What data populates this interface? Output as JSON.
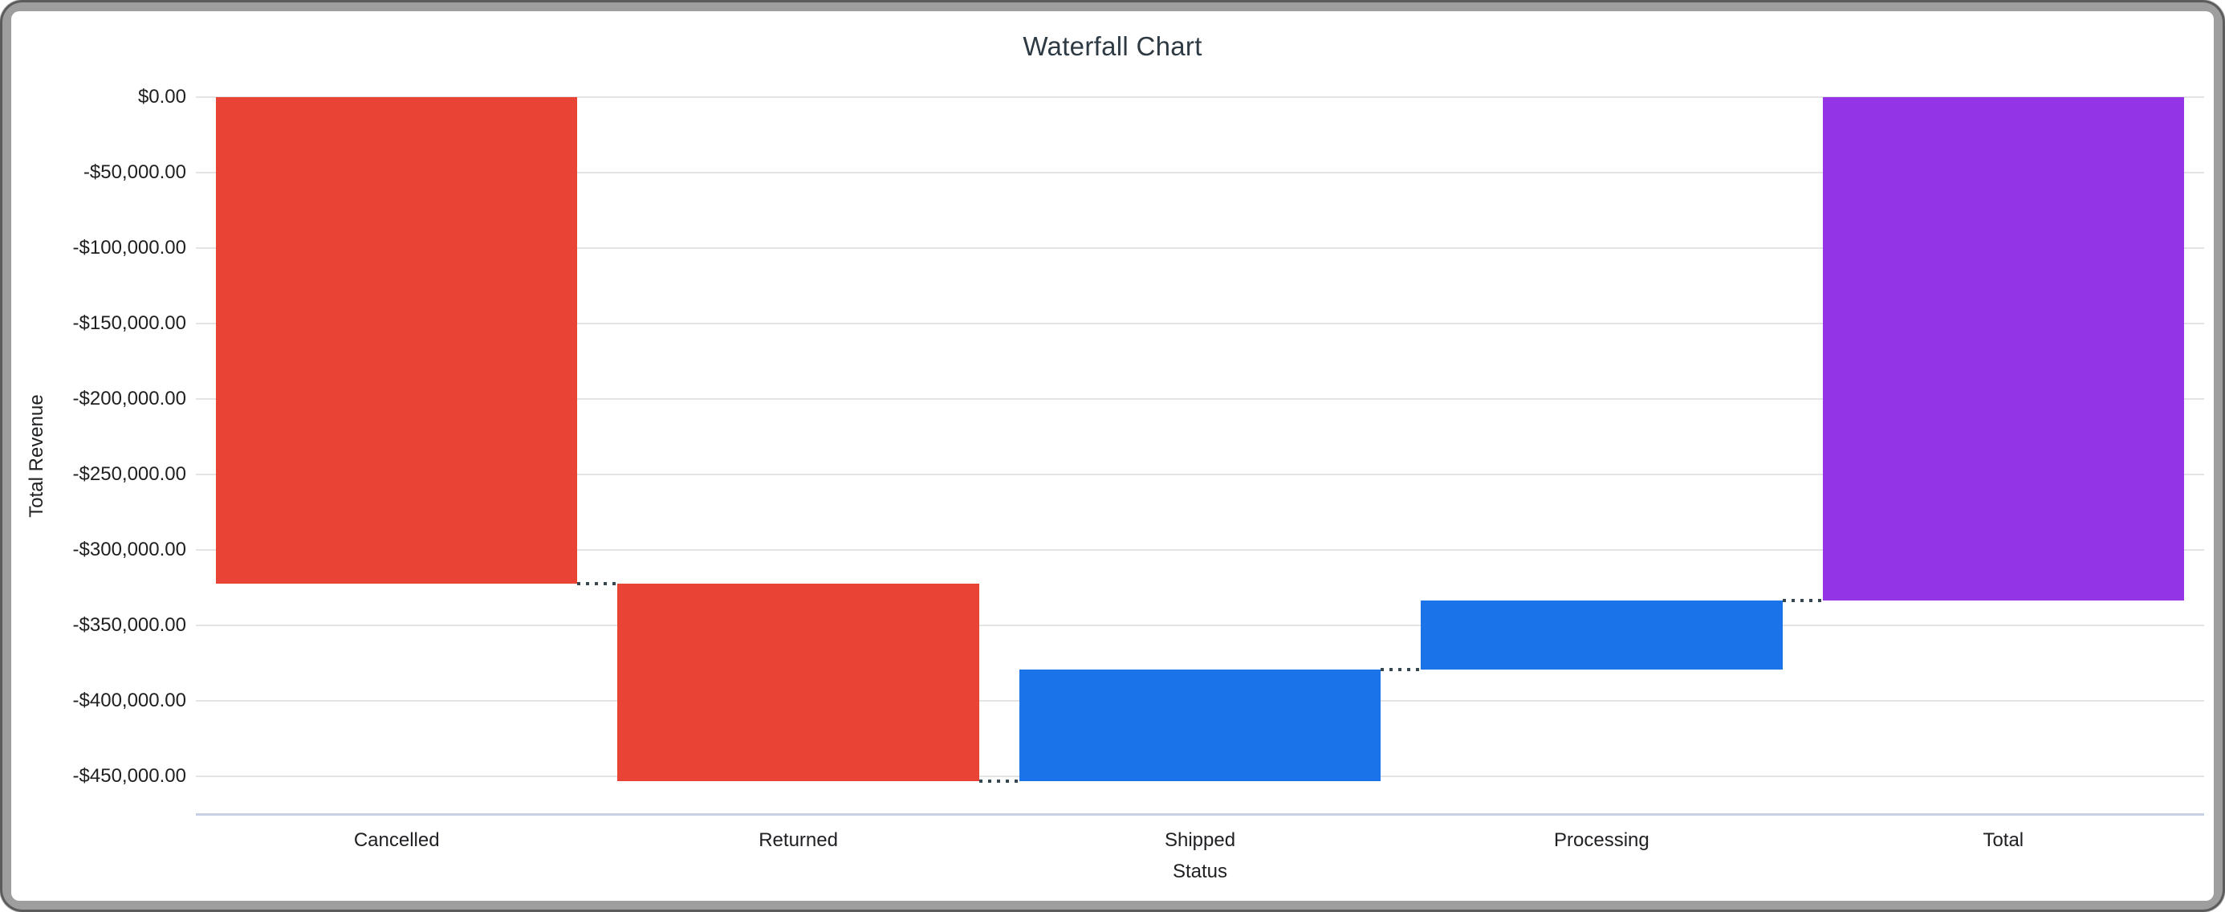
{
  "chart_data": {
    "type": "waterfall",
    "title": "Waterfall Chart",
    "xlabel": "Status",
    "ylabel": "Total Revenue",
    "categories": [
      "Cancelled",
      "Returned",
      "Shipped",
      "Processing",
      "Total"
    ],
    "series": [
      {
        "name": "Cancelled",
        "delta": -322600,
        "start": 0,
        "end": -322600,
        "role": "negative"
      },
      {
        "name": "Returned",
        "delta": -130600,
        "start": -322600,
        "end": -453200,
        "role": "negative"
      },
      {
        "name": "Shipped",
        "delta": 73900,
        "start": -453200,
        "end": -379300,
        "role": "positive"
      },
      {
        "name": "Processing",
        "delta": 46050,
        "start": -379300,
        "end": -333250,
        "role": "positive"
      },
      {
        "name": "Total",
        "delta": -333250,
        "start": 0,
        "end": -333250,
        "role": "total"
      }
    ],
    "total_value": -333250,
    "y_axis": {
      "max": 0,
      "min": -475000,
      "tick_step": 50000,
      "tick_labels": [
        "$0.00",
        "-$50,000.00",
        "-$100,000.00",
        "-$150,000.00",
        "-$200,000.00",
        "-$250,000.00",
        "-$300,000.00",
        "-$350,000.00",
        "-$400,000.00",
        "-$450,000.00"
      ]
    },
    "legend": "none",
    "grid": true,
    "colors": {
      "negative": "#E94335",
      "positive": "#1A73E8",
      "total": "#9334E6",
      "gridline": "#E3E3E3",
      "axis_line": "#C7D1E3",
      "connector": "#37474F",
      "label_text": "#202124",
      "title_text": "#2E3A43"
    }
  }
}
